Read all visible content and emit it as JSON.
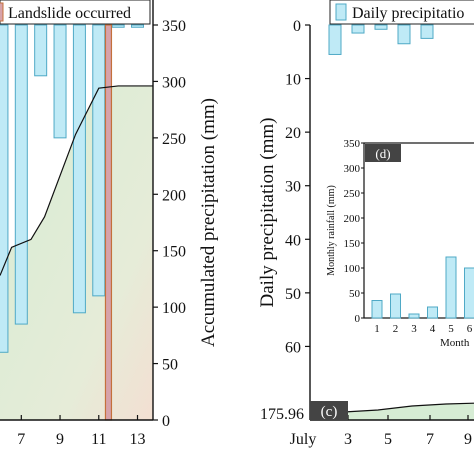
{
  "chart_data": [
    {
      "type": "bar",
      "panel": "left",
      "legend": "Landslide occurred",
      "x_ticks": [
        "7",
        "9",
        "11",
        "13"
      ],
      "y2_label": "Accumulated precipitation (mm)",
      "y2_ticks": [
        "0",
        "50",
        "100",
        "150",
        "200",
        "250",
        "300",
        "350"
      ],
      "y2_lim": [
        0,
        350
      ],
      "x_lim": [
        5.9,
        13.8
      ],
      "daily_bars": [
        {
          "x": 6,
          "value": 290
        },
        {
          "x": 7,
          "value": 265
        },
        {
          "x": 8,
          "value": 45
        },
        {
          "x": 9,
          "value": 100
        },
        {
          "x": 10,
          "value": 255
        },
        {
          "x": 11,
          "value": 240
        },
        {
          "x": 12,
          "value": 2
        },
        {
          "x": 13,
          "value": 2
        }
      ],
      "accumulated_line": {
        "x": [
          5.9,
          6.5,
          7.5,
          8.2,
          9.8,
          11,
          12,
          13.8
        ],
        "y": [
          128,
          153,
          160,
          180,
          253,
          294,
          296,
          296
        ]
      },
      "landslide_marker_x": 11.5,
      "colors": {
        "bar": "#bfeaf6",
        "bar_edge": "#4fa9c6",
        "marker": "#d7a2aa",
        "marker_edge": "#c4703b",
        "area_green": "#d6ecd4",
        "area_peach": "#f3dfd2"
      }
    },
    {
      "type": "bar",
      "panel": "right",
      "legend": "Daily precipitatio",
      "y_label": "Daily precipitation (mm)",
      "y_ticks": [
        "0",
        "10",
        "20",
        "30",
        "40",
        "50",
        "60"
      ],
      "y_lim": [
        0,
        70
      ],
      "y_inverted": true,
      "bottom_value_label": "175.96",
      "x_ticks": [
        "July",
        "3",
        "5",
        "7",
        "9"
      ],
      "bars": [
        {
          "x": 2,
          "value": 5.5
        },
        {
          "x": 3,
          "value": 1.5
        },
        {
          "x": 4,
          "value": 0.8
        },
        {
          "x": 5,
          "value": 3.5
        },
        {
          "x": 6,
          "value": 2.5
        }
      ],
      "panel_labels": [
        "(c)",
        "(d)"
      ],
      "bottom_curve_y": [
        175.96,
        175.96,
        176.5,
        177.5,
        178,
        178.3
      ],
      "inset": {
        "type": "bar",
        "ylabel": "Monthly rainfall (mm)",
        "xlabel": "Month",
        "categories": [
          "1",
          "2",
          "3",
          "4",
          "5",
          "6"
        ],
        "values": [
          35,
          48,
          8,
          22,
          122,
          100
        ],
        "y_ticks": [
          "0",
          "50",
          "100",
          "150",
          "200",
          "250",
          "300",
          "350"
        ],
        "ylim": [
          0,
          350
        ]
      }
    }
  ]
}
